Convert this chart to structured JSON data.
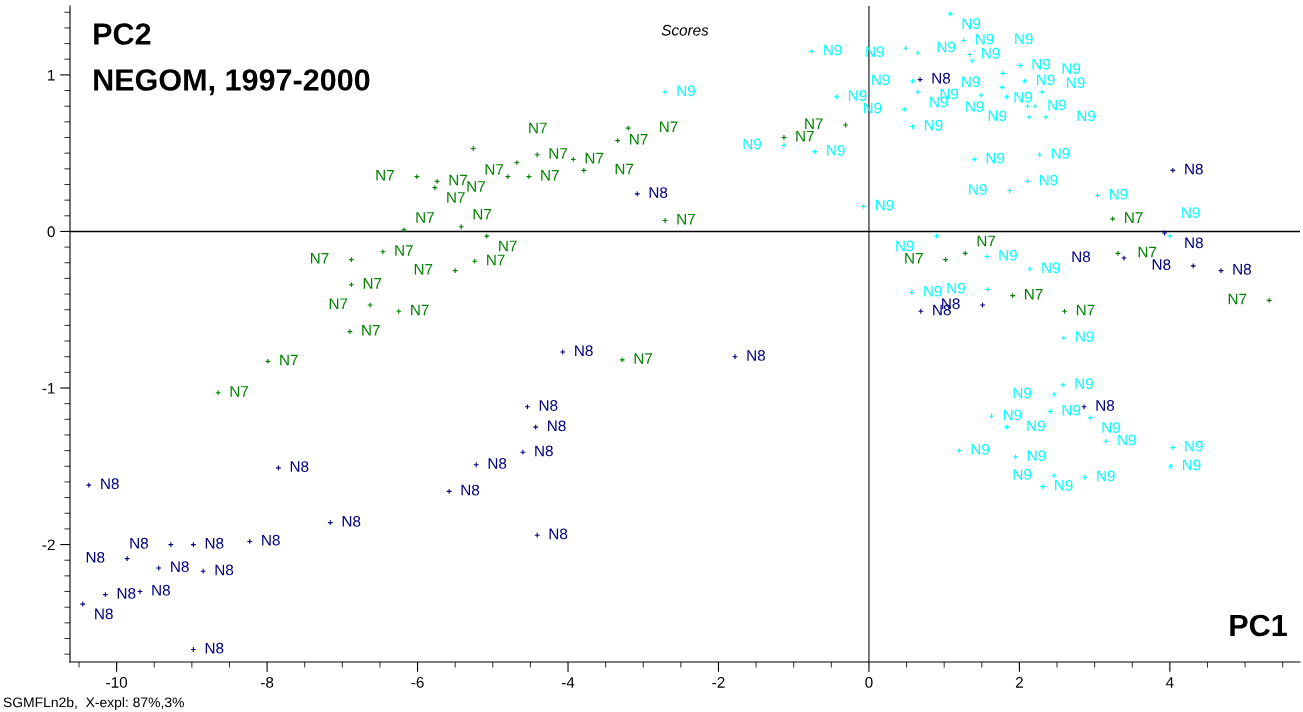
{
  "chart_data": {
    "type": "scatter",
    "title": "Scores",
    "ylabel": "PC2",
    "subtitle": "NEGOM, 1997-2000",
    "xlabel": "PC1",
    "annotations": [
      "SGMFLn2b,  X-expl: 87%,3%"
    ],
    "xlim": [
      -10.62,
      5.73
    ],
    "ylim": [
      -2.75,
      1.44
    ],
    "xticks": [
      -10,
      -8,
      -6,
      -4,
      -2,
      0,
      2,
      4
    ],
    "yticks": [
      -2,
      -1,
      0,
      1
    ],
    "grid": false,
    "legend": false,
    "marker": "cross",
    "tick_labels": "xy",
    "ref_lines": [
      {
        "axis": "x",
        "value": 0,
        "color": "#404040"
      },
      {
        "axis": "y",
        "value": 0,
        "color": "#000000"
      }
    ],
    "series": [
      {
        "name": "N7",
        "color": "#008000",
        "x": [
          -8.65,
          -7.99,
          -6.9,
          -6.63,
          -6.25,
          -6.88,
          -6.88,
          -6.46,
          -6.18,
          -5.42,
          -5.24,
          -5.5,
          -5.08,
          -6.01,
          -5.74,
          -5.77,
          -5.26,
          -4.8,
          -4.52,
          -4.68,
          -4.41,
          -3.93,
          -3.79,
          -3.34,
          -3.2,
          -2.71,
          -3.28,
          -1.13,
          -0.31,
          3.24,
          3.31,
          1.28,
          1.02,
          1.91,
          2.6,
          5.32
        ],
        "values": [
          -1.03,
          -0.83,
          -0.64,
          -0.47,
          -0.51,
          -0.34,
          -0.18,
          -0.13,
          0.01,
          0.03,
          -0.19,
          -0.25,
          -0.03,
          0.35,
          0.32,
          0.28,
          0.53,
          0.35,
          0.35,
          0.44,
          0.49,
          0.46,
          0.39,
          0.58,
          0.66,
          0.07,
          -0.82,
          0.6,
          0.68,
          0.08,
          -0.14,
          -0.14,
          -0.18,
          -0.41,
          -0.51,
          -0.44
        ]
      },
      {
        "name": "N8",
        "color": "#000080",
        "x": [
          -10.37,
          -7.85,
          -4.54,
          -4.43,
          -4.6,
          -5.22,
          -5.58,
          -4.41,
          -7.16,
          -8.23,
          -8.98,
          -9.28,
          -9.86,
          -9.44,
          -8.85,
          -9.69,
          -10.15,
          -10.45,
          -8.98,
          -4.07,
          -1.78,
          -3.08,
          4.04,
          3.93,
          3.39,
          4.31,
          4.68,
          1.51,
          0.69,
          0.68,
          2.86
        ],
        "values": [
          -1.62,
          -1.51,
          -1.12,
          -1.25,
          -1.41,
          -1.49,
          -1.66,
          -1.94,
          -1.86,
          -1.98,
          -2.0,
          -2.0,
          -2.09,
          -2.15,
          -2.17,
          -2.3,
          -2.32,
          -2.38,
          -2.67,
          -0.77,
          -0.8,
          0.24,
          0.39,
          -0.01,
          -0.17,
          -0.22,
          -0.25,
          -0.47,
          -0.51,
          0.97,
          -1.12
        ]
      },
      {
        "name": "N9",
        "color": "#00ffff",
        "x": [
          1.08,
          -0.76,
          0.49,
          0.65,
          1.26,
          1.34,
          1.37,
          0.58,
          0.65,
          -0.43,
          1.49,
          1.77,
          2.07,
          1.83,
          2.11,
          2.21,
          2.13,
          2.35,
          0.47,
          0.58,
          -1.13,
          1.4,
          2.27,
          3.04,
          -0.07,
          0.9,
          2.01,
          2.3,
          1.78,
          -0.72,
          2.11,
          1.87,
          -2.71,
          2.14,
          0.57,
          1.58,
          2.59,
          1.57,
          4.0,
          2.58,
          2.46,
          2.41,
          2.94,
          1.63,
          1.83,
          3.15,
          4.04,
          4.01,
          1.2,
          1.95,
          2.46,
          2.31,
          2.87
        ],
        "values": [
          1.39,
          1.15,
          1.17,
          1.14,
          1.22,
          1.13,
          1.09,
          0.96,
          0.89,
          0.86,
          0.87,
          0.92,
          0.96,
          0.86,
          0.8,
          0.8,
          0.73,
          0.73,
          0.78,
          0.67,
          0.55,
          0.46,
          0.49,
          0.23,
          0.16,
          -0.03,
          1.06,
          0.89,
          1.01,
          0.51,
          0.32,
          0.26,
          0.89,
          -0.24,
          -0.39,
          -0.37,
          -0.68,
          -0.16,
          -0.03,
          -0.98,
          -1.04,
          -1.15,
          -1.19,
          -1.18,
          -1.25,
          -1.34,
          -1.38,
          -1.5,
          -1.4,
          -1.44,
          -1.56,
          -1.63,
          -1.57
        ]
      }
    ]
  }
}
